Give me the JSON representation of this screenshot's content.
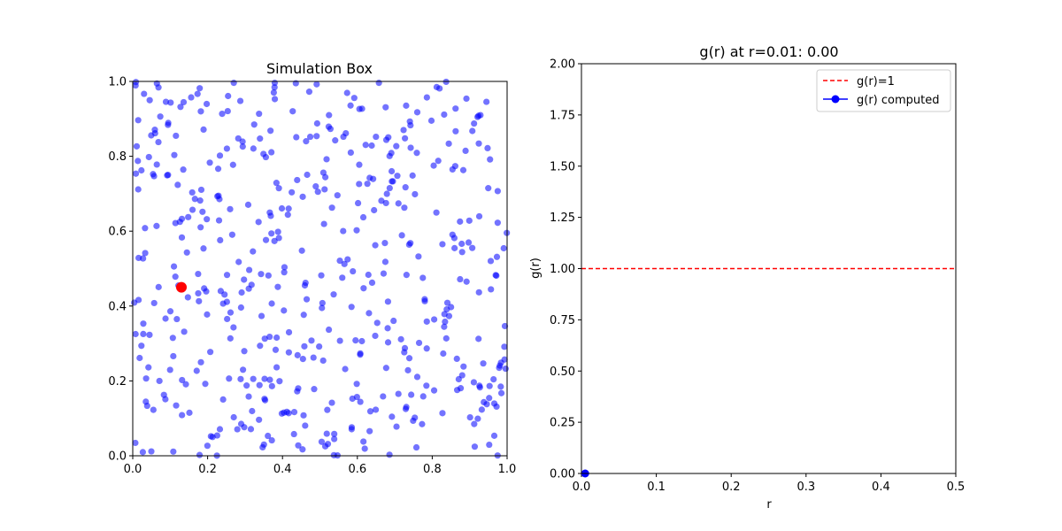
{
  "chart_data": [
    {
      "type": "scatter",
      "title": "Simulation Box",
      "xlabel": "",
      "ylabel": "",
      "xlim": [
        0,
        1
      ],
      "ylim": [
        0,
        1
      ],
      "xticks": [
        0.0,
        0.2,
        0.4,
        0.6,
        0.8,
        1.0
      ],
      "yticks": [
        0.0,
        0.2,
        0.4,
        0.6,
        0.8,
        1.0
      ],
      "xtick_labels": [
        "0.0",
        "0.2",
        "0.4",
        "0.6",
        "0.8",
        "1.0"
      ],
      "ytick_labels": [
        "0.0",
        "0.2",
        "0.4",
        "0.6",
        "0.8",
        "1.0"
      ],
      "grid": false,
      "particle_color": "#0000ff",
      "particle_count": 500,
      "random_seed": 7,
      "highlight": {
        "x": 0.13,
        "y": 0.45,
        "color": "#ff0000"
      }
    },
    {
      "type": "line",
      "title": "g(r) at r=0.01: 0.00",
      "xlabel": "r",
      "ylabel": "g(r)",
      "xlim": [
        0,
        0.5
      ],
      "ylim": [
        0,
        2
      ],
      "xticks": [
        0.0,
        0.1,
        0.2,
        0.3,
        0.4,
        0.5
      ],
      "yticks": [
        0.0,
        0.25,
        0.5,
        0.75,
        1.0,
        1.25,
        1.5,
        1.75,
        2.0
      ],
      "xtick_labels": [
        "0.0",
        "0.1",
        "0.2",
        "0.3",
        "0.4",
        "0.5"
      ],
      "ytick_labels": [
        "0.00",
        "0.25",
        "0.50",
        "0.75",
        "1.00",
        "1.25",
        "1.50",
        "1.75",
        "2.00"
      ],
      "grid": false,
      "legend_placement": "top-right",
      "series": [
        {
          "name": "g(r)=1",
          "style": "dashed",
          "color": "#ff0000",
          "x": [
            0,
            0.5
          ],
          "y": [
            1,
            1
          ]
        },
        {
          "name": "g(r) computed",
          "style": "solid-marker",
          "color": "#0000ff",
          "x": [
            0.005
          ],
          "y": [
            0.0
          ]
        }
      ]
    }
  ]
}
